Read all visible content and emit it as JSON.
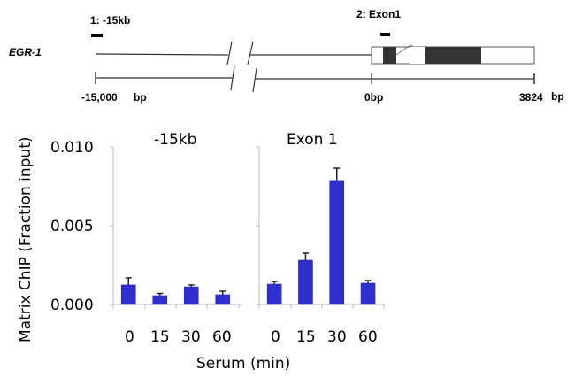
{
  "gene_diagram": {
    "gene_name": "EGR-1",
    "probes": [
      {
        "label": "1: -15kb"
      },
      {
        "label": "2: Exon1"
      }
    ],
    "scale_labels": {
      "start": "-15,000",
      "start_unit": "bp",
      "zero": "0bp",
      "end": "3824",
      "end_unit": "bp"
    }
  },
  "chart_data": [
    {
      "type": "bar",
      "title": "-15kb",
      "categories": [
        "0",
        "15",
        "30",
        "60"
      ],
      "values": [
        0.00124,
        0.00056,
        0.00112,
        0.00062
      ],
      "error": [
        0.00045,
        0.00014,
        0.00012,
        0.00022
      ],
      "xlabel": "Serum (min)",
      "ylabel": "Matrix ChIP (Fraction input)",
      "ylim": [
        0,
        0.01
      ],
      "yticks": [
        "0.000",
        "0.005",
        "0.010"
      ],
      "color": "#2f2fd0",
      "grid": false
    },
    {
      "type": "bar",
      "title": "Exon 1",
      "categories": [
        "0",
        "15",
        "30",
        "60"
      ],
      "values": [
        0.00129,
        0.00281,
        0.00787,
        0.00135
      ],
      "error": [
        0.00017,
        0.00045,
        0.00078,
        0.00017
      ],
      "xlabel": "Serum (min)",
      "ylabel": "Matrix ChIP (Fraction input)",
      "ylim": [
        0,
        0.01
      ],
      "yticks": [
        "0.000",
        "0.005",
        "0.010"
      ],
      "color": "#2f2fd0",
      "grid": false
    }
  ],
  "shared": {
    "xlabel": "Serum (min)",
    "ylabel": "Matrix ChIP (Fraction input)"
  }
}
